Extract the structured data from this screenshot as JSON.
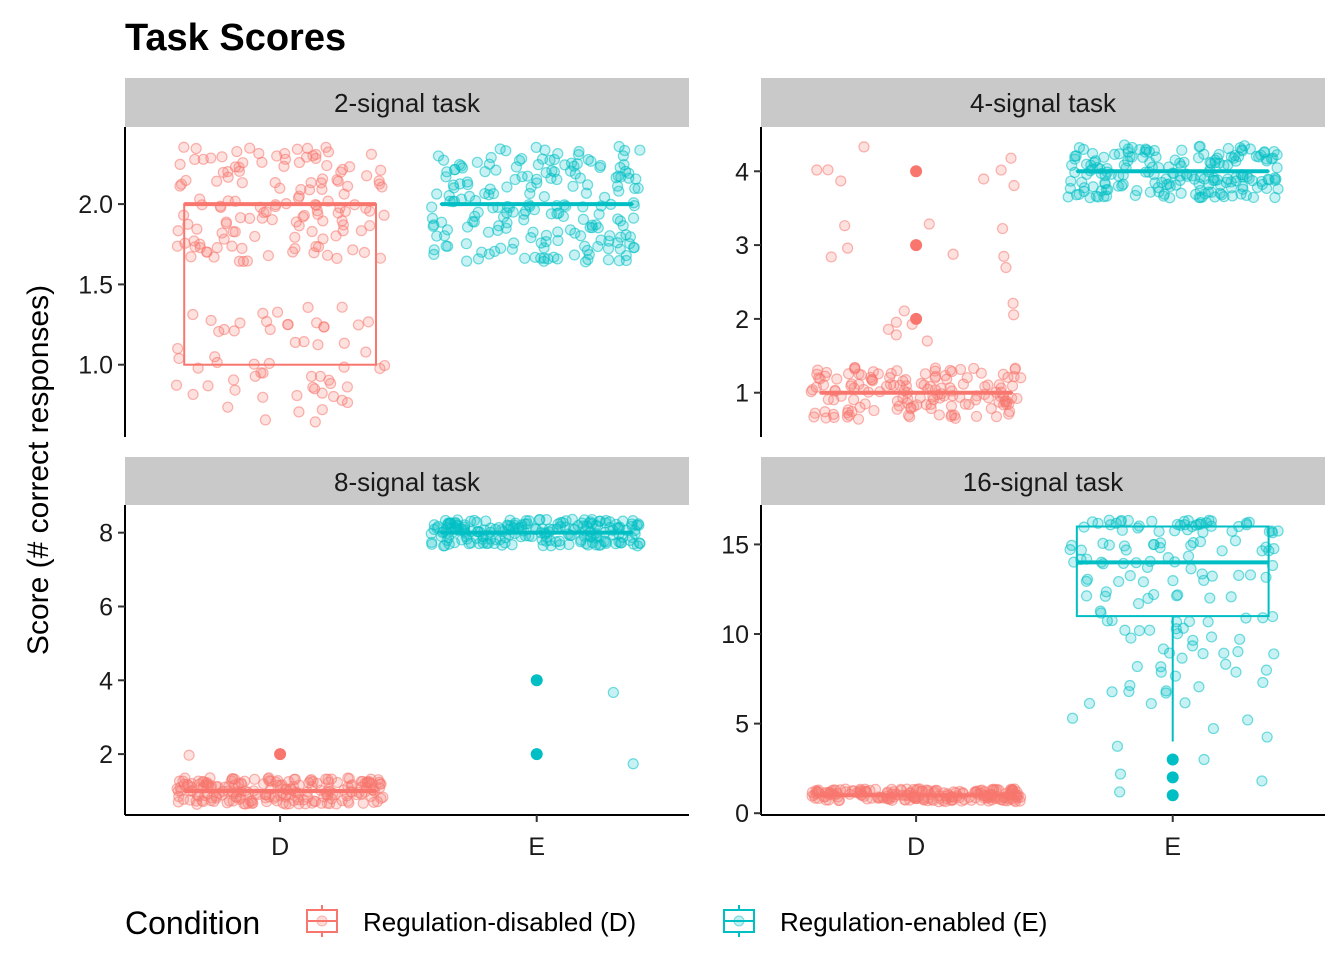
{
  "chart_data": {
    "type": "box",
    "title": "Task Scores",
    "ylabel": "Score (# correct responses)",
    "xlabel": "",
    "categories": [
      "D",
      "E"
    ],
    "legend": {
      "title": "Condition",
      "position": "bottom",
      "entries": [
        {
          "label": "Regulation-disabled (D)",
          "color": "#F8766D"
        },
        {
          "label": "Regulation-enabled (E)",
          "color": "#00BFC4"
        }
      ]
    },
    "colors": {
      "D": "#F8766D",
      "E": "#00BFC4",
      "strip": "#C9C9C9"
    },
    "panels": [
      {
        "strip": "2-signal task",
        "ylim": [
          0.55,
          2.48
        ],
        "yticks": [
          1.0,
          1.5,
          2.0
        ],
        "ytick_labels": [
          "1.0",
          "1.5",
          "2.0"
        ],
        "show_x_axis": false,
        "groups": [
          {
            "category": "D",
            "q1": 1.0,
            "median": 2.0,
            "q3": 2.0,
            "whisker_low": 1.0,
            "whisker_high": 2.0,
            "outliers": [],
            "jitter_levels": [
              1,
              2
            ],
            "jitter_counts": [
              60,
              140
            ]
          },
          {
            "category": "E",
            "q1": 2.0,
            "median": 2.0,
            "q3": 2.0,
            "whisker_low": 2.0,
            "whisker_high": 2.0,
            "outliers": [],
            "jitter_levels": [
              2
            ],
            "jitter_counts": [
              200
            ]
          }
        ]
      },
      {
        "strip": "4-signal task",
        "ylim": [
          0.4,
          4.6
        ],
        "yticks": [
          1,
          2,
          3,
          4
        ],
        "ytick_labels": [
          "1",
          "2",
          "3",
          "4"
        ],
        "show_x_axis": false,
        "groups": [
          {
            "category": "D",
            "q1": 1,
            "median": 1,
            "q3": 1,
            "whisker_low": 1,
            "whisker_high": 1,
            "outliers": [
              2,
              3,
              4
            ],
            "jitter_levels": [
              1,
              2,
              3,
              4
            ],
            "jitter_counts": [
              150,
              8,
              8,
              8
            ]
          },
          {
            "category": "E",
            "q1": 4,
            "median": 4,
            "q3": 4,
            "whisker_low": 4,
            "whisker_high": 4,
            "outliers": [],
            "jitter_levels": [
              4
            ],
            "jitter_counts": [
              190
            ]
          }
        ]
      },
      {
        "strip": "8-signal task",
        "ylim": [
          0.35,
          8.75
        ],
        "yticks": [
          2,
          4,
          6,
          8
        ],
        "ytick_labels": [
          "2",
          "4",
          "6",
          "8"
        ],
        "show_x_axis": true,
        "groups": [
          {
            "category": "D",
            "q1": 1,
            "median": 1,
            "q3": 1,
            "whisker_low": 1,
            "whisker_high": 1,
            "outliers": [
              2
            ],
            "jitter_levels": [
              1,
              2
            ],
            "jitter_counts": [
              200,
              1
            ]
          },
          {
            "category": "E",
            "q1": 8,
            "median": 8,
            "q3": 8,
            "whisker_low": 8,
            "whisker_high": 8,
            "outliers": [
              2,
              4
            ],
            "jitter_levels": [
              8,
              4,
              2
            ],
            "jitter_counts": [
              200,
              1,
              1
            ]
          }
        ]
      },
      {
        "strip": "16-signal task",
        "ylim": [
          -0.1,
          17.2
        ],
        "yticks": [
          0,
          5,
          10,
          15
        ],
        "ytick_labels": [
          "0",
          "5",
          "10",
          "15"
        ],
        "show_x_axis": true,
        "groups": [
          {
            "category": "D",
            "q1": 1,
            "median": 1,
            "q3": 1,
            "whisker_low": 1,
            "whisker_high": 1,
            "outliers": [],
            "jitter_levels": [
              1
            ],
            "jitter_counts": [
              200
            ]
          },
          {
            "category": "E",
            "q1": 11,
            "median": 14,
            "q3": 16,
            "whisker_low": 4,
            "whisker_high": 16,
            "outliers": [
              1,
              2,
              3
            ],
            "jitter_levels": [
              16,
              15,
              14,
              13,
              12,
              11,
              10,
              9,
              8,
              7,
              6,
              5,
              4,
              3,
              2,
              1
            ],
            "jitter_counts": [
              40,
              20,
              14,
              12,
              10,
              10,
              10,
              8,
              7,
              7,
              3,
              3,
              2,
              1,
              2,
              1
            ]
          }
        ]
      }
    ]
  }
}
